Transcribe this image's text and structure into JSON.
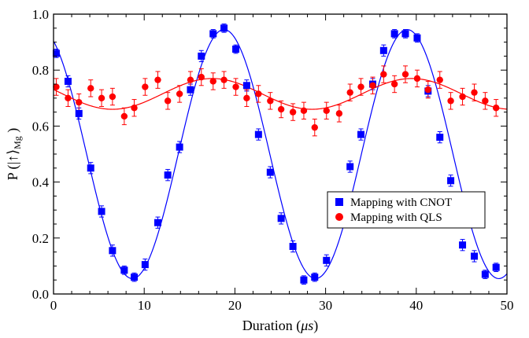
{
  "chart_data": {
    "type": "scatter",
    "xlabel": "Duration (μs)",
    "ylabel": "P (|↑⟩Mg)",
    "xlim": [
      0,
      50
    ],
    "ylim": [
      0,
      1.0
    ],
    "x_ticks": [
      "0",
      "10",
      "20",
      "30",
      "40",
      "50"
    ],
    "y_ticks": [
      "0.0",
      "0.2",
      "0.4",
      "0.6",
      "0.8",
      "1.0"
    ],
    "grid": false,
    "legend_position": "lower-right",
    "series": [
      {
        "name": "Mapping with CNOT",
        "marker": "square",
        "color": "#0000ff",
        "points": [
          [
            0.3,
            0.86,
            0.015
          ],
          [
            1.6,
            0.76,
            0.02
          ],
          [
            2.8,
            0.645,
            0.02
          ],
          [
            4.1,
            0.45,
            0.02
          ],
          [
            5.3,
            0.295,
            0.02
          ],
          [
            6.5,
            0.155,
            0.02
          ],
          [
            7.8,
            0.085,
            0.015
          ],
          [
            8.9,
            0.06,
            0.015
          ],
          [
            10.1,
            0.105,
            0.02
          ],
          [
            11.5,
            0.255,
            0.02
          ],
          [
            12.6,
            0.425,
            0.02
          ],
          [
            13.9,
            0.525,
            0.02
          ],
          [
            15.1,
            0.73,
            0.02
          ],
          [
            16.3,
            0.85,
            0.02
          ],
          [
            17.6,
            0.93,
            0.015
          ],
          [
            18.8,
            0.95,
            0.015
          ],
          [
            20.1,
            0.875,
            0.015
          ],
          [
            21.3,
            0.745,
            0.02
          ],
          [
            22.6,
            0.57,
            0.02
          ],
          [
            23.9,
            0.435,
            0.02
          ],
          [
            25.1,
            0.27,
            0.02
          ],
          [
            26.4,
            0.17,
            0.02
          ],
          [
            27.6,
            0.05,
            0.015
          ],
          [
            28.8,
            0.06,
            0.015
          ],
          [
            30.1,
            0.12,
            0.02
          ],
          [
            31.5,
            0.26,
            0.02
          ],
          [
            32.7,
            0.455,
            0.02
          ],
          [
            33.9,
            0.57,
            0.02
          ],
          [
            35.2,
            0.75,
            0.02
          ],
          [
            36.4,
            0.87,
            0.02
          ],
          [
            37.6,
            0.93,
            0.015
          ],
          [
            38.8,
            0.93,
            0.015
          ],
          [
            40.1,
            0.915,
            0.015
          ],
          [
            41.3,
            0.725,
            0.02
          ],
          [
            42.6,
            0.56,
            0.02
          ],
          [
            43.8,
            0.405,
            0.02
          ],
          [
            45.1,
            0.175,
            0.02
          ],
          [
            46.4,
            0.135,
            0.02
          ],
          [
            47.6,
            0.07,
            0.015
          ],
          [
            48.8,
            0.095,
            0.015
          ]
        ]
      },
      {
        "name": "Mapping with QLS",
        "marker": "circle",
        "color": "#ff0000",
        "points": [
          [
            0.3,
            0.74,
            0.03
          ],
          [
            1.6,
            0.7,
            0.03
          ],
          [
            2.8,
            0.685,
            0.03
          ],
          [
            4.1,
            0.735,
            0.03
          ],
          [
            5.3,
            0.7,
            0.03
          ],
          [
            6.5,
            0.705,
            0.03
          ],
          [
            7.8,
            0.635,
            0.03
          ],
          [
            8.9,
            0.665,
            0.03
          ],
          [
            10.1,
            0.74,
            0.03
          ],
          [
            11.5,
            0.765,
            0.03
          ],
          [
            12.6,
            0.69,
            0.03
          ],
          [
            13.9,
            0.715,
            0.03
          ],
          [
            15.1,
            0.765,
            0.03
          ],
          [
            16.3,
            0.775,
            0.03
          ],
          [
            17.6,
            0.76,
            0.03
          ],
          [
            18.8,
            0.765,
            0.03
          ],
          [
            20.1,
            0.74,
            0.03
          ],
          [
            21.3,
            0.7,
            0.03
          ],
          [
            22.6,
            0.715,
            0.03
          ],
          [
            23.9,
            0.69,
            0.03
          ],
          [
            25.1,
            0.66,
            0.03
          ],
          [
            26.4,
            0.65,
            0.03
          ],
          [
            27.6,
            0.655,
            0.03
          ],
          [
            28.8,
            0.595,
            0.03
          ],
          [
            30.1,
            0.655,
            0.03
          ],
          [
            31.5,
            0.645,
            0.03
          ],
          [
            32.7,
            0.72,
            0.03
          ],
          [
            33.9,
            0.74,
            0.03
          ],
          [
            35.2,
            0.745,
            0.03
          ],
          [
            36.4,
            0.785,
            0.03
          ],
          [
            37.6,
            0.75,
            0.03
          ],
          [
            38.8,
            0.785,
            0.03
          ],
          [
            40.1,
            0.77,
            0.03
          ],
          [
            41.3,
            0.73,
            0.03
          ],
          [
            42.6,
            0.765,
            0.03
          ],
          [
            43.8,
            0.69,
            0.03
          ],
          [
            45.1,
            0.705,
            0.03
          ],
          [
            46.4,
            0.72,
            0.03
          ],
          [
            47.6,
            0.69,
            0.03
          ],
          [
            48.8,
            0.665,
            0.03
          ]
        ]
      }
    ],
    "fits": [
      {
        "series": "Mapping with CNOT",
        "color": "#0000ff",
        "offset": 0.5,
        "amplitude": 0.445,
        "period_us": 20.2,
        "peak_us": 18.8
      },
      {
        "series": "Mapping with QLS",
        "color": "#ff0000",
        "offset": 0.715,
        "amplitude": 0.055,
        "period_us": 22.0,
        "peak_us": 17.5
      }
    ]
  }
}
